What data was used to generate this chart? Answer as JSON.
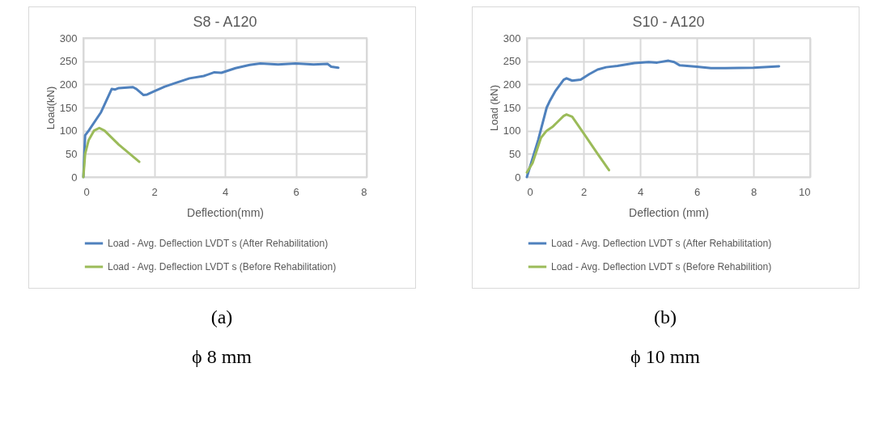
{
  "chart_data": [
    {
      "type": "line",
      "title": "S8 - A120",
      "xlabel": "Deflection(mm)",
      "ylabel": "Load(kN)",
      "xlim": [
        0,
        8
      ],
      "xticks": [
        0,
        2,
        4,
        6,
        8
      ],
      "ylim": [
        0,
        300
      ],
      "yticks": [
        0,
        50,
        100,
        150,
        200,
        250,
        300
      ],
      "grid": true,
      "legend": "bottom",
      "marker": "none",
      "line_style": "solid",
      "annotations": [
        "(a)",
        "ϕ 8 mm"
      ],
      "series": [
        {
          "name": "Load - Avg. Deflection LVDT s (After Rehabilitation)",
          "color": "#4f81bd",
          "x": [
            0,
            0.05,
            0.15,
            0.5,
            0.8,
            0.9,
            1.0,
            1.4,
            1.5,
            1.7,
            1.8,
            2.0,
            2.3,
            2.6,
            3.0,
            3.4,
            3.7,
            3.9,
            4.3,
            4.7,
            5.0,
            5.5,
            6.0,
            6.5,
            6.9,
            7.0,
            7.2
          ],
          "values": [
            0,
            90,
            100,
            140,
            190,
            189,
            192,
            194,
            190,
            177,
            178,
            185,
            195,
            203,
            213,
            218,
            226,
            225,
            235,
            242,
            245,
            243,
            245,
            243,
            244,
            238,
            236
          ]
        },
        {
          "name": "Load - Avg. Deflection LVDT s (Before Rehabilitation)",
          "color": "#9bbb59",
          "x": [
            0,
            0.05,
            0.15,
            0.3,
            0.45,
            0.6,
            1.0,
            1.58
          ],
          "values": [
            0,
            50,
            80,
            100,
            106,
            100,
            70,
            33
          ]
        }
      ]
    },
    {
      "type": "line",
      "title": "S10 - A120",
      "xlabel": "Deflection (mm)",
      "ylabel": "Load (kN)",
      "xlim": [
        0,
        10
      ],
      "xticks": [
        0,
        2,
        4,
        6,
        8,
        10
      ],
      "ylim": [
        0,
        300
      ],
      "yticks": [
        0,
        50,
        100,
        150,
        200,
        250,
        300
      ],
      "grid": true,
      "legend": "bottom",
      "marker": "none",
      "line_style": "solid",
      "annotations": [
        "(b)",
        "ϕ 10 mm"
      ],
      "series": [
        {
          "name": "Load - Avg. Deflection LVDT s (After Rehabilitation)",
          "color": "#4f81bd",
          "x": [
            0,
            0.4,
            0.7,
            0.8,
            1.0,
            1.3,
            1.4,
            1.6,
            1.9,
            2.2,
            2.5,
            2.8,
            3.2,
            3.8,
            4.3,
            4.6,
            5.0,
            5.2,
            5.4,
            6.0,
            6.5,
            7.0,
            8.0,
            8.9
          ],
          "values": [
            0,
            80,
            150,
            163,
            185,
            210,
            213,
            208,
            210,
            222,
            232,
            237,
            240,
            246,
            248,
            247,
            251,
            248,
            241,
            238,
            235,
            235,
            236,
            239
          ]
        },
        {
          "name": "Load - Avg. Deflection LVDT s (Before Rehabilition)",
          "color": "#9bbb59",
          "x": [
            0,
            0.2,
            0.5,
            0.7,
            0.9,
            1.1,
            1.3,
            1.4,
            1.6,
            2.0,
            2.5,
            2.9
          ],
          "values": [
            10,
            30,
            85,
            100,
            108,
            120,
            132,
            135,
            130,
            95,
            50,
            15
          ]
        }
      ]
    }
  ]
}
